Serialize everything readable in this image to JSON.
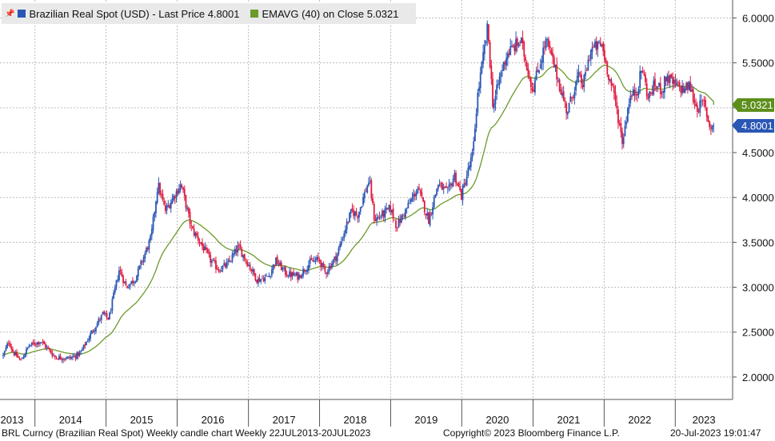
{
  "legend": {
    "series1": "Brazilian Real Spot (USD) - Last Price 4.8001",
    "series2": "EMAVG (40)  on Close 5.0321"
  },
  "colors": {
    "up": "#2a56b5",
    "down": "#e0193f",
    "ema": "#6b9a2a",
    "grid": "#bdbdbd",
    "last_tag": "#2a56b5",
    "ema_tag": "#5d8f1c"
  },
  "tags": {
    "ema": "5.0321",
    "last": "4.8001"
  },
  "footer": {
    "left": "BRL Curncy (Brazilian Real Spot) Weekly candle chart  Weekly 22JUL2013-20JUL2023",
    "center": "Copyright© 2023 Bloomberg Finance L.P.",
    "right": "20-Jul-2023 19:01:47"
  },
  "chart_data": {
    "type": "candlestick",
    "title": "",
    "ylim": [
      1.75,
      6.2
    ],
    "yticks": [
      "2.0000",
      "2.5000",
      "3.0000",
      "3.5000",
      "4.0000",
      "4.5000",
      "5.0000",
      "5.5000",
      "6.0000"
    ],
    "xticks": [
      "2013",
      "2014",
      "2015",
      "2016",
      "2017",
      "2018",
      "2019",
      "2020",
      "2021",
      "2022",
      "2023"
    ],
    "frequency": "Weekly",
    "start": "22JUL2013",
    "end": "20JUL2023",
    "close_anchors": [
      [
        "2013-07-22",
        2.24
      ],
      [
        "2013-08-20",
        2.4
      ],
      [
        "2013-09-10",
        2.28
      ],
      [
        "2013-10-20",
        2.18
      ],
      [
        "2013-12-01",
        2.35
      ],
      [
        "2014-02-01",
        2.4
      ],
      [
        "2014-04-15",
        2.22
      ],
      [
        "2014-06-30",
        2.21
      ],
      [
        "2014-08-20",
        2.26
      ],
      [
        "2014-10-20",
        2.5
      ],
      [
        "2014-12-15",
        2.7
      ],
      [
        "2015-01-15",
        2.65
      ],
      [
        "2015-03-10",
        3.2
      ],
      [
        "2015-04-15",
        3.0
      ],
      [
        "2015-06-01",
        3.1
      ],
      [
        "2015-08-20",
        3.55
      ],
      [
        "2015-09-24",
        4.15
      ],
      [
        "2015-11-01",
        3.85
      ],
      [
        "2016-01-21",
        4.15
      ],
      [
        "2016-03-15",
        3.65
      ],
      [
        "2016-04-15",
        3.55
      ],
      [
        "2016-06-20",
        3.3
      ],
      [
        "2016-08-01",
        3.2
      ],
      [
        "2016-09-15",
        3.25
      ],
      [
        "2016-11-10",
        3.45
      ],
      [
        "2016-12-20",
        3.3
      ],
      [
        "2017-02-15",
        3.08
      ],
      [
        "2017-04-15",
        3.12
      ],
      [
        "2017-05-20",
        3.3
      ],
      [
        "2017-07-15",
        3.15
      ],
      [
        "2017-09-15",
        3.12
      ],
      [
        "2017-11-15",
        3.28
      ],
      [
        "2017-12-30",
        3.31
      ],
      [
        "2018-01-30",
        3.16
      ],
      [
        "2018-03-30",
        3.35
      ],
      [
        "2018-05-20",
        3.7
      ],
      [
        "2018-06-15",
        3.85
      ],
      [
        "2018-07-15",
        3.8
      ],
      [
        "2018-09-13",
        4.2
      ],
      [
        "2018-10-10",
        3.75
      ],
      [
        "2018-11-15",
        3.8
      ],
      [
        "2018-12-30",
        3.88
      ],
      [
        "2019-02-01",
        3.68
      ],
      [
        "2019-03-30",
        3.9
      ],
      [
        "2019-05-20",
        4.1
      ],
      [
        "2019-07-15",
        3.75
      ],
      [
        "2019-09-01",
        4.15
      ],
      [
        "2019-10-20",
        4.05
      ],
      [
        "2019-11-25",
        4.25
      ],
      [
        "2019-12-30",
        4.02
      ],
      [
        "2020-02-28",
        4.5
      ],
      [
        "2020-03-20",
        5.1
      ],
      [
        "2020-05-13",
        5.9
      ],
      [
        "2020-06-10",
        5.0
      ],
      [
        "2020-07-15",
        5.35
      ],
      [
        "2020-08-20",
        5.6
      ],
      [
        "2020-10-30",
        5.75
      ],
      [
        "2020-12-30",
        5.2
      ],
      [
        "2021-03-09",
        5.75
      ],
      [
        "2021-04-15",
        5.5
      ],
      [
        "2021-06-25",
        4.95
      ],
      [
        "2021-08-20",
        5.35
      ],
      [
        "2021-09-15",
        5.25
      ],
      [
        "2021-10-25",
        5.65
      ],
      [
        "2021-12-20",
        5.7
      ],
      [
        "2022-01-20",
        5.4
      ],
      [
        "2022-02-25",
        5.1
      ],
      [
        "2022-04-05",
        4.62
      ],
      [
        "2022-05-10",
        5.1
      ],
      [
        "2022-06-20",
        5.2
      ],
      [
        "2022-07-15",
        5.45
      ],
      [
        "2022-08-15",
        5.1
      ],
      [
        "2022-09-15",
        5.25
      ],
      [
        "2022-10-28",
        5.2
      ],
      [
        "2022-11-15",
        5.35
      ],
      [
        "2022-12-30",
        5.25
      ],
      [
        "2023-02-15",
        5.2
      ],
      [
        "2023-03-15",
        5.25
      ],
      [
        "2023-04-20",
        5.0
      ],
      [
        "2023-05-30",
        5.05
      ],
      [
        "2023-06-25",
        4.8
      ],
      [
        "2023-07-20",
        4.8
      ]
    ],
    "ema_period": 40,
    "last_price": 4.8001,
    "last_ema": 5.0321
  }
}
